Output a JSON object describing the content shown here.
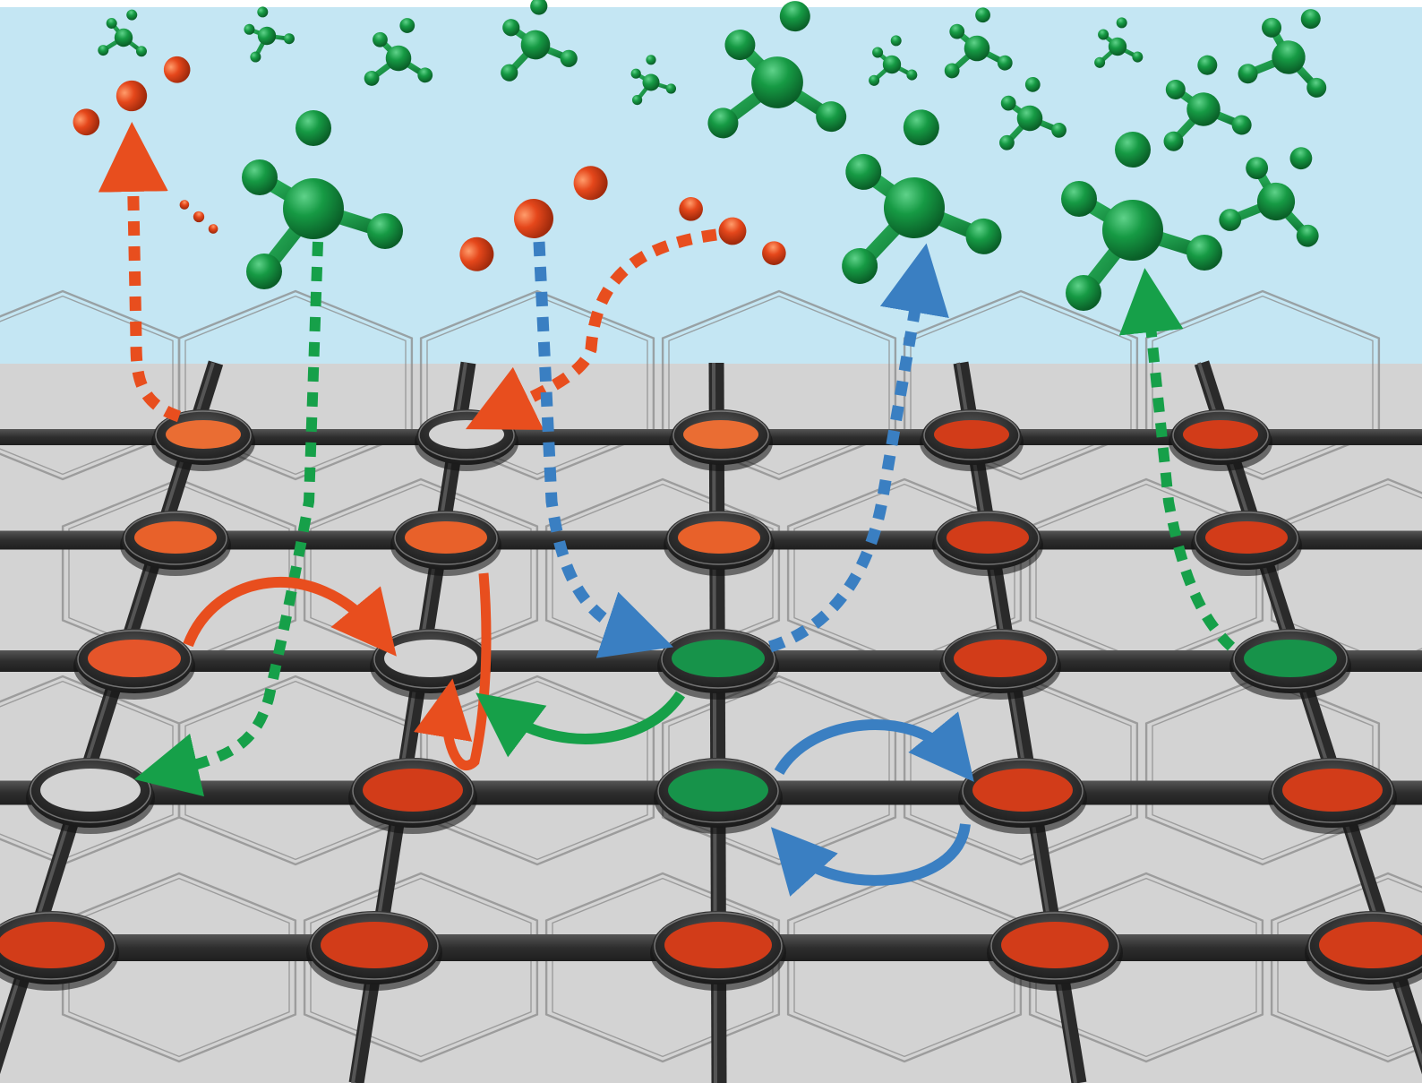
{
  "colors": {
    "sky": "#c4e6f3",
    "surface": "#d3d3d3",
    "rail": "#3a3a3a",
    "orange_site": "#e8632a",
    "red_site": "#d8401d",
    "green_site": "#17934a",
    "green_molecule": "#13893d",
    "orange_molecule": "#e3481c",
    "blue_arrow": "#3a7fc2",
    "green_arrow": "#16a049",
    "orange_arrow": "#e84e1e"
  },
  "lattice": {
    "rows": [
      {
        "row": 1,
        "sites": [
          "orange",
          "empty",
          "orange",
          "red",
          "red"
        ]
      },
      {
        "row": 2,
        "sites": [
          "orange",
          "orange",
          "orange",
          "red",
          "red"
        ]
      },
      {
        "row": 3,
        "sites": [
          "orange",
          "empty",
          "green",
          "red",
          "green"
        ]
      },
      {
        "row": 4,
        "sites": [
          "empty",
          "red",
          "green",
          "red",
          "red"
        ]
      },
      {
        "row": 5,
        "sites": [
          "red",
          "red",
          "red",
          "red",
          "red"
        ]
      }
    ]
  },
  "molecules": {
    "gas_phase_tetrahedral": "green",
    "gas_phase_diatomic_chain": "orange"
  },
  "processes": [
    {
      "name": "desorption",
      "color": "orange_arrow",
      "style": "dotted"
    },
    {
      "name": "adsorption",
      "color": "green_arrow",
      "style": "dotted"
    },
    {
      "name": "adsorption-desorption",
      "color": "blue_arrow",
      "style": "dotted"
    },
    {
      "name": "surface-hop",
      "color": "orange_arrow",
      "style": "solid"
    },
    {
      "name": "surface-hop",
      "color": "green_arrow",
      "style": "solid"
    },
    {
      "name": "site-exchange",
      "color": "blue_arrow",
      "style": "solid"
    }
  ]
}
